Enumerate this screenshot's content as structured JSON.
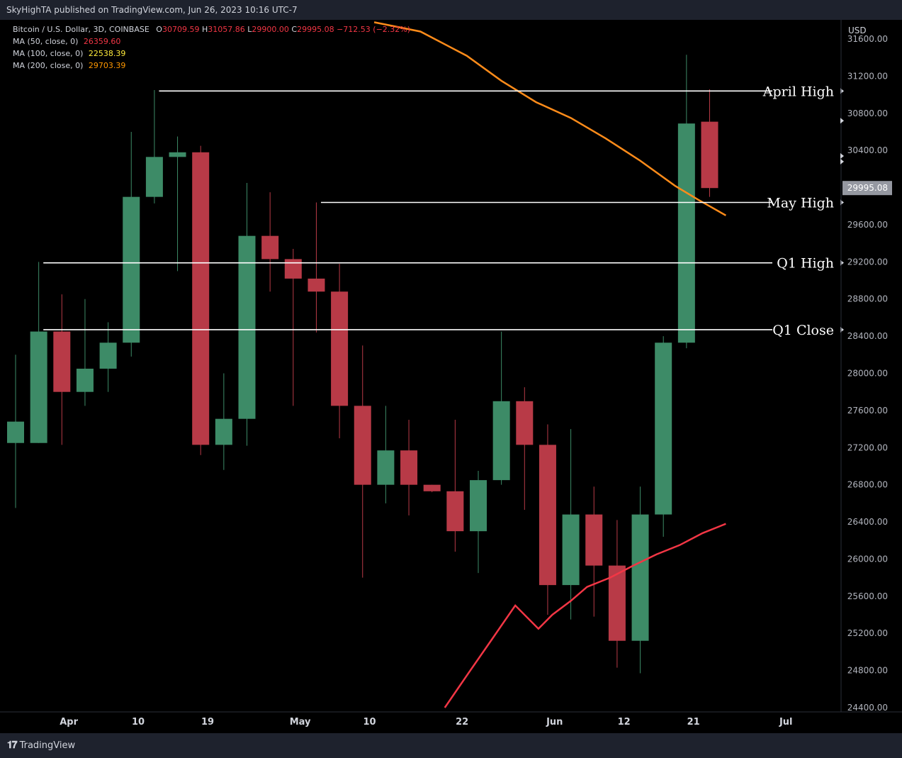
{
  "header": {
    "published": "SkyHighTA published on TradingView.com, Jun 26, 2023 10:16 UTC-7"
  },
  "legend": {
    "symbol": "Bitcoin / U.S. Dollar, 3D, COINBASE",
    "o_label": "O",
    "o": "30709.59",
    "h_label": "H",
    "h": "31057.86",
    "l_label": "L",
    "l": "29900.00",
    "c_label": "C",
    "c": "29995.08",
    "change": "−712.53 (−2.32%)",
    "ma50_label": "MA (50, close, 0)",
    "ma50_value": "26359.60",
    "ma50_color": "#f23645",
    "ma100_label": "MA (100, close, 0)",
    "ma100_value": "22538.39",
    "ma100_color": "#ffeb3b",
    "ma200_label": "MA (200, close, 0)",
    "ma200_value": "29703.39",
    "ma200_color": "#ff9800"
  },
  "footer": {
    "brand": "TradingView"
  },
  "colors": {
    "up": "#3d8b67",
    "down": "#b83a47",
    "ma50": "#f23645",
    "ma200": "#ff8c1a",
    "price_badge_bg": "#9598a1",
    "level_line": "#ffffff"
  },
  "chart_data": {
    "type": "candlestick",
    "currency": "USD",
    "ylim": [
      24400,
      31600
    ],
    "y_ticks": [
      "24400.00",
      "24800.00",
      "25200.00",
      "25600.00",
      "26000.00",
      "26400.00",
      "26800.00",
      "27200.00",
      "27600.00",
      "28000.00",
      "28400.00",
      "28800.00",
      "29200.00",
      "29600.00",
      "30000.00",
      "30400.00",
      "30800.00",
      "31200.00",
      "31600.00"
    ],
    "x_ticks": [
      {
        "label": "Apr",
        "bar": 2.3
      },
      {
        "label": "10",
        "bar": 5.3
      },
      {
        "label": "19",
        "bar": 8.3
      },
      {
        "label": "May",
        "bar": 12.3
      },
      {
        "label": "10",
        "bar": 15.3
      },
      {
        "label": "22",
        "bar": 19.3
      },
      {
        "label": "Jun",
        "bar": 23.3
      },
      {
        "label": "12",
        "bar": 26.3
      },
      {
        "label": "21",
        "bar": 29.3
      },
      {
        "label": "Jul",
        "bar": 33.3
      }
    ],
    "candles": [
      {
        "o": 27250,
        "h": 28200,
        "l": 26550,
        "c": 27480
      },
      {
        "o": 27250,
        "h": 29200,
        "l": 27250,
        "c": 28450
      },
      {
        "o": 28450,
        "h": 28850,
        "l": 27230,
        "c": 27800
      },
      {
        "o": 27800,
        "h": 28800,
        "l": 27650,
        "c": 28050
      },
      {
        "o": 28050,
        "h": 28550,
        "l": 27800,
        "c": 28330
      },
      {
        "o": 28330,
        "h": 30600,
        "l": 28180,
        "c": 29900
      },
      {
        "o": 29900,
        "h": 31050,
        "l": 29830,
        "c": 30330
      },
      {
        "o": 30330,
        "h": 30550,
        "l": 29100,
        "c": 30380
      },
      {
        "o": 30380,
        "h": 30450,
        "l": 27120,
        "c": 27230
      },
      {
        "o": 27230,
        "h": 28000,
        "l": 26960,
        "c": 27510
      },
      {
        "o": 27510,
        "h": 30050,
        "l": 27220,
        "c": 29480
      },
      {
        "o": 29480,
        "h": 29950,
        "l": 28880,
        "c": 29230
      },
      {
        "o": 29230,
        "h": 29340,
        "l": 27650,
        "c": 29020
      },
      {
        "o": 29020,
        "h": 29840,
        "l": 28440,
        "c": 28880
      },
      {
        "o": 28880,
        "h": 29180,
        "l": 27300,
        "c": 27650
      },
      {
        "o": 27650,
        "h": 28300,
        "l": 25800,
        "c": 26800
      },
      {
        "o": 26800,
        "h": 27650,
        "l": 26600,
        "c": 27170
      },
      {
        "o": 27170,
        "h": 27500,
        "l": 26470,
        "c": 26800
      },
      {
        "o": 26800,
        "h": 26800,
        "l": 26720,
        "c": 26730
      },
      {
        "o": 26730,
        "h": 27500,
        "l": 26080,
        "c": 26300
      },
      {
        "o": 26300,
        "h": 26950,
        "l": 25850,
        "c": 26850
      },
      {
        "o": 26850,
        "h": 28450,
        "l": 26800,
        "c": 27700
      },
      {
        "o": 27700,
        "h": 27850,
        "l": 26530,
        "c": 27230
      },
      {
        "o": 27230,
        "h": 27450,
        "l": 25400,
        "c": 25720
      },
      {
        "o": 25720,
        "h": 27400,
        "l": 25350,
        "c": 26480
      },
      {
        "o": 26480,
        "h": 26780,
        "l": 25380,
        "c": 25930
      },
      {
        "o": 25930,
        "h": 26420,
        "l": 24830,
        "c": 25120
      },
      {
        "o": 25120,
        "h": 26780,
        "l": 24770,
        "c": 26480
      },
      {
        "o": 26480,
        "h": 28400,
        "l": 26240,
        "c": 28330
      },
      {
        "o": 28330,
        "h": 31430,
        "l": 28270,
        "c": 30690
      },
      {
        "o": 30709.59,
        "h": 31057.86,
        "l": 29900.0,
        "c": 29995.08
      }
    ],
    "ma50": [
      {
        "bar": 18.6,
        "y": 24400
      },
      {
        "bar": 19.7,
        "y": 24780
      },
      {
        "bar": 20.7,
        "y": 25130
      },
      {
        "bar": 21.8,
        "y": 25520
      },
      {
        "bar": 22.8,
        "y": 24950
      },
      {
        "bar": 22.8,
        "y": 25200
      }
    ],
    "ma50_points": [
      [
        18.6,
        24400
      ],
      [
        19.7,
        24780
      ],
      [
        20.7,
        25130
      ],
      [
        21.8,
        25520
      ],
      [
        22.8,
        24980
      ],
      [
        22.8,
        24980
      ]
    ],
    "ma50_line": [
      [
        18.55,
        24400
      ],
      [
        19.6,
        24760
      ],
      [
        20.6,
        25150
      ],
      [
        21.6,
        25550
      ],
      [
        22.6,
        24900
      ]
    ],
    "ma50_series": [
      [
        18.55,
        24400
      ],
      [
        19.6,
        24780
      ],
      [
        20.6,
        25140
      ],
      [
        21.6,
        25500
      ],
      [
        22.6,
        25250
      ],
      [
        23.2,
        25400
      ],
      [
        24.0,
        25550
      ],
      [
        24.7,
        25700
      ],
      [
        25.7,
        25800
      ],
      [
        26.7,
        25930
      ],
      [
        27.7,
        26050
      ],
      [
        28.7,
        26150
      ],
      [
        29.7,
        26280
      ],
      [
        30.7,
        26380
      ]
    ],
    "ma200_series": [
      [
        15.5,
        31780
      ],
      [
        17.5,
        31680
      ],
      [
        19.5,
        31420
      ],
      [
        21.0,
        31150
      ],
      [
        22.5,
        30920
      ],
      [
        24.0,
        30750
      ],
      [
        25.5,
        30530
      ],
      [
        27.0,
        30290
      ],
      [
        28.5,
        30020
      ],
      [
        29.5,
        29870
      ],
      [
        30.7,
        29700
      ]
    ],
    "levels": [
      {
        "label": "April High",
        "value": 31040,
        "start_bar": 6.2
      },
      {
        "label": "May High",
        "value": 29840,
        "start_bar": 13.2
      },
      {
        "label": "Q1 High",
        "value": 29190,
        "start_bar": 1.2
      },
      {
        "label": "Q1 Close",
        "value": 28470,
        "start_bar": 1.2
      }
    ],
    "last_price": "29995.08"
  }
}
